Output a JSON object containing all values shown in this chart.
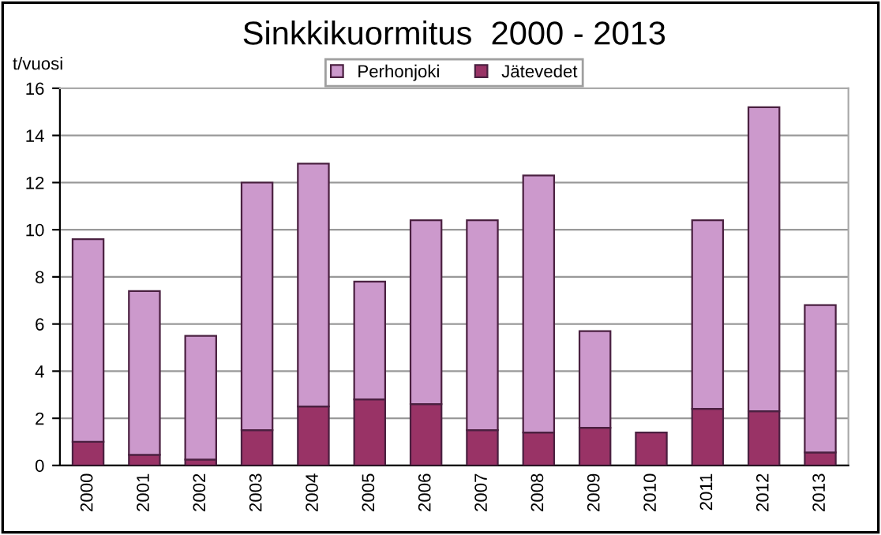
{
  "chart_data": {
    "type": "bar",
    "title": "Sinkkikuormitus  2000 - 2013",
    "ylabel": "t/vuosi",
    "categories": [
      "2000",
      "2001",
      "2002",
      "2003",
      "2004",
      "2005",
      "2006",
      "2007",
      "2008",
      "2009",
      "2010",
      "2011",
      "2012",
      "2013"
    ],
    "stacked": true,
    "series": [
      {
        "name": "Jätevedet",
        "color": "#993366",
        "values": [
          1.0,
          0.45,
          0.25,
          1.5,
          2.5,
          2.8,
          2.6,
          1.5,
          1.4,
          1.6,
          1.4,
          2.4,
          2.3,
          0.55
        ]
      },
      {
        "name": "Perhonjoki",
        "color": "#cc99cc",
        "values": [
          8.6,
          6.95,
          5.25,
          10.5,
          10.3,
          5.0,
          7.8,
          8.9,
          10.9,
          4.1,
          null,
          8.0,
          12.9,
          6.25
        ]
      }
    ],
    "ylim": [
      0,
      16
    ],
    "yticks": [
      0,
      2,
      4,
      6,
      8,
      10,
      12,
      14,
      16
    ],
    "grid": "y",
    "legend": "top"
  }
}
